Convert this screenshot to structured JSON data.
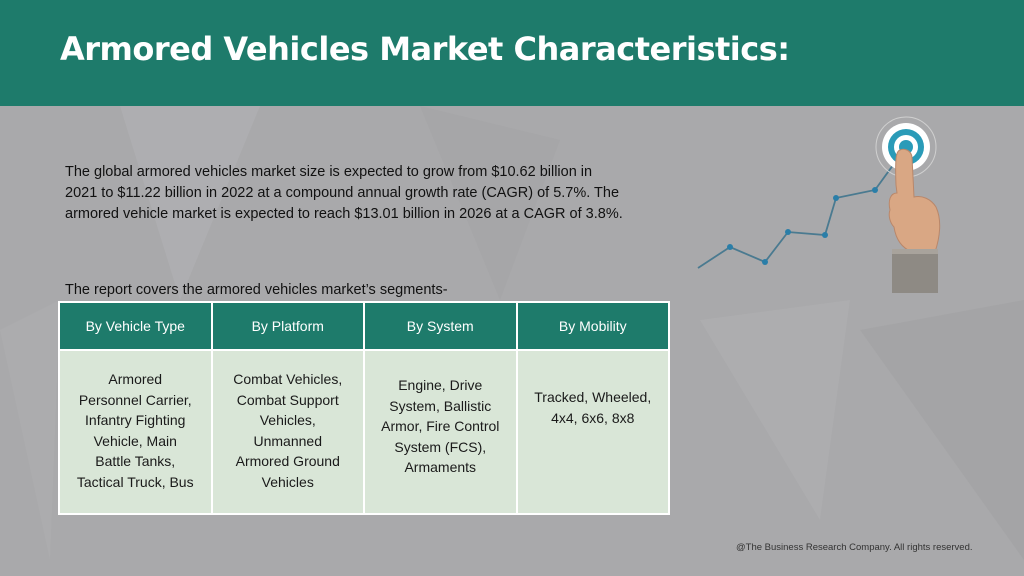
{
  "header": {
    "title": "Armored Vehicles Market Characteristics:"
  },
  "intro": {
    "lines": [
      "The global armored vehicles market size is expected to grow from $10.62 billion in",
      "2021 to $11.22 billion in 2022 at a compound annual growth rate (CAGR) of 5.7%. The",
      "armored vehicle market is expected to reach $13.01 billion in 2026 at a CAGR of 3.8%."
    ]
  },
  "segments": {
    "label": "The report covers the armored vehicles market’s segments-",
    "columns": [
      {
        "header": "By Vehicle Type",
        "lines": [
          "Armored",
          "Personnel Carrier,",
          "Infantry Fighting",
          "Vehicle, Main",
          "Battle Tanks,",
          "Tactical Truck, Bus"
        ]
      },
      {
        "header": "By Platform",
        "lines": [
          "Combat Vehicles,",
          "Combat Support",
          "Vehicles,",
          "Unmanned",
          "Armored Ground",
          "Vehicles"
        ]
      },
      {
        "header": "By System",
        "lines": [
          "Engine, Drive",
          "System, Ballistic",
          "Armor, Fire Control",
          "System (FCS),",
          "Armaments"
        ]
      },
      {
        "header": "By Mobility",
        "lines": [
          "Tracked, Wheeled,",
          "4x4, 6x6, 8x8"
        ]
      }
    ]
  },
  "footer": {
    "copyright": "@The Business Research Company. All rights reserved."
  },
  "colors": {
    "header_bg": "#1e7b6b",
    "table_header_bg": "#1e7b6b",
    "table_cell_bg": "#d9e6d7",
    "page_bg": "#a9a9ab"
  },
  "icons": [
    "target-icon",
    "growth-line-icon",
    "pointing-hand-icon"
  ]
}
